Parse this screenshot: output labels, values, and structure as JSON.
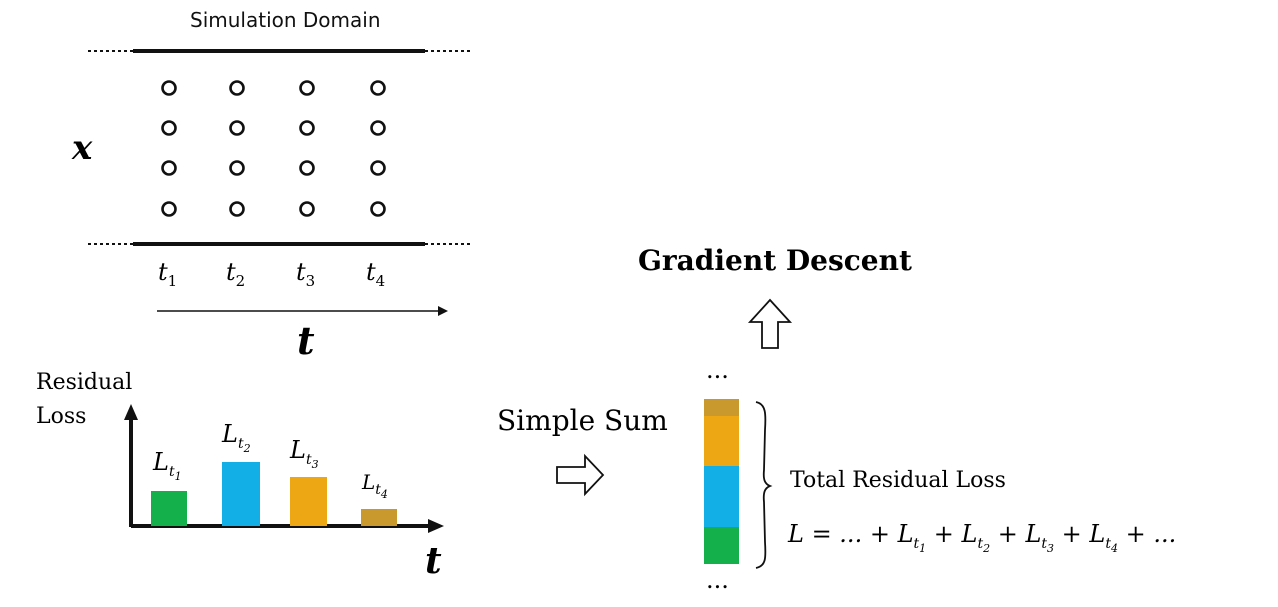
{
  "domain_title": "Simulation Domain",
  "x_axis_label": "x",
  "time_ticks": [
    {
      "base": "t",
      "sub": "1"
    },
    {
      "base": "t",
      "sub": "2"
    },
    {
      "base": "t",
      "sub": "3"
    },
    {
      "base": "t",
      "sub": "4"
    }
  ],
  "t_axis_label": "t",
  "residual_chart": {
    "ylabel_line1": "Residual",
    "ylabel_line2": "Loss",
    "xlabel": "t",
    "bars": [
      {
        "base": "L",
        "sub": "t",
        "subsub": "1",
        "color": "#14b04c"
      },
      {
        "base": "L",
        "sub": "t",
        "subsub": "2",
        "color": "#12aee6"
      },
      {
        "base": "L",
        "sub": "t",
        "subsub": "3",
        "color": "#eea714"
      },
      {
        "base": "L",
        "sub": "t",
        "subsub": "4",
        "color": "#c9992d"
      }
    ]
  },
  "simple_sum_label": "Simple Sum",
  "gradient_descent_label": "Gradient Descent",
  "stack_ellipsis_top": "...",
  "stack_ellipsis_bottom": "...",
  "total_loss_label": "Total Residual Loss",
  "equation": {
    "lhs": "L = ... + ",
    "terms": [
      {
        "base": "L",
        "sub": "t",
        "subsub": "1"
      },
      {
        "base": "L",
        "sub": "t",
        "subsub": "2"
      },
      {
        "base": "L",
        "sub": "t",
        "subsub": "3"
      },
      {
        "base": "L",
        "sub": "t",
        "subsub": "4"
      }
    ],
    "plus": " + ",
    "tail": " + ..."
  }
}
